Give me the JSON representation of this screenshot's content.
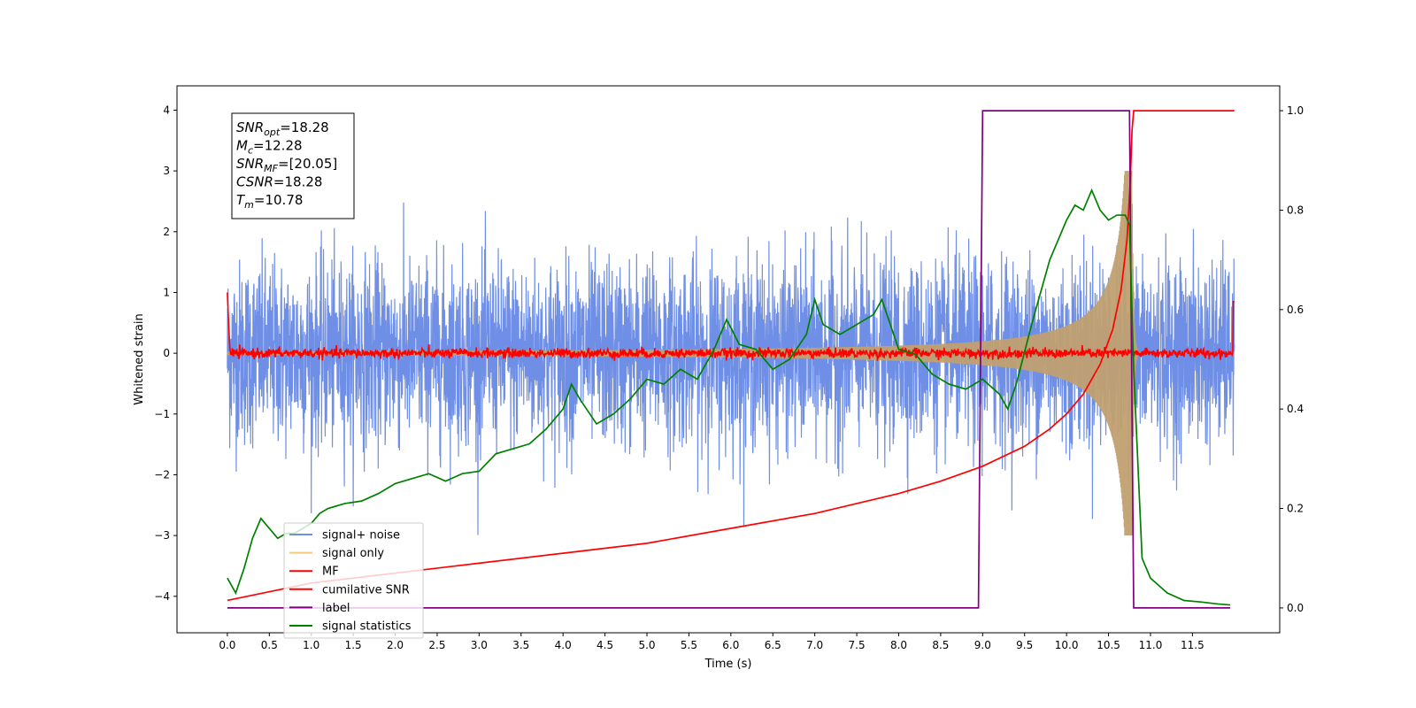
{
  "chart_data": {
    "type": "line",
    "title": "",
    "xlabel": "Time (s)",
    "ylabel": "Whitened strain",
    "xlim": [
      -0.6,
      12.54
    ],
    "ylim": [
      -4.6,
      4.4
    ],
    "y2lim": [
      -0.05,
      1.05
    ],
    "x_ticks": [
      0.0,
      0.5,
      1.0,
      1.5,
      2.0,
      2.5,
      3.0,
      3.5,
      4.0,
      4.5,
      5.0,
      5.5,
      6.0,
      6.5,
      7.0,
      7.5,
      8.0,
      8.5,
      9.0,
      9.5,
      10.0,
      10.5,
      11.0,
      11.5
    ],
    "x_tick_labels": [
      "0.0",
      "0.5",
      "1.0",
      "1.5",
      "2.0",
      "2.5",
      "3.0",
      "3.5",
      "4.0",
      "4.5",
      "5.0",
      "5.5",
      "6.0",
      "6.5",
      "7.0",
      "7.5",
      "8.0",
      "8.5",
      "9.0",
      "9.5",
      "10.0",
      "10.5",
      "11.0",
      "11.5"
    ],
    "y_ticks": [
      -4,
      -3,
      -2,
      -1,
      0,
      1,
      2,
      3,
      4
    ],
    "y_tick_labels": [
      "−4",
      "−3",
      "−2",
      "−1",
      "0",
      "1",
      "2",
      "3",
      "4"
    ],
    "y2_ticks": [
      0.0,
      0.2,
      0.4,
      0.6,
      0.8,
      1.0
    ],
    "y2_tick_labels": [
      "0.0",
      "0.2",
      "0.4",
      "0.6",
      "0.8",
      "1.0"
    ],
    "grid": false,
    "legend_placement": "lower-left",
    "annotation": [
      {
        "symbol": "SNR",
        "sub": "opt",
        "value": "=18.28"
      },
      {
        "symbol": "M",
        "sub": "c",
        "value": "=12.28"
      },
      {
        "symbol": "SNR",
        "sub": "MF",
        "value": "=[20.05]"
      },
      {
        "symbol": "CSNR",
        "sub": "",
        "value": "=18.28"
      },
      {
        "symbol": "T",
        "sub": "m",
        "value": "=10.78"
      }
    ],
    "series": [
      {
        "name": "signal+ noise",
        "color": "#6f8fe6",
        "axis": "left",
        "kind": "noise-band",
        "t_range": [
          0.0,
          12.0
        ],
        "noise_std": 0.75,
        "max_abs": 3.2,
        "envelope_peak": 2.9,
        "peak_time": 10.78
      },
      {
        "name": "signal only",
        "color": "#f5c97a",
        "axis": "left",
        "kind": "chirp",
        "t_range": [
          0.0,
          12.0
        ],
        "amplitude_start": 0.03,
        "amplitude_peak": 3.0,
        "peak_time": 10.78
      },
      {
        "name": "MF",
        "color": "#ff0000",
        "axis": "left",
        "kind": "flat-noise",
        "t_range": [
          0.0,
          12.0
        ],
        "level": 0.0,
        "noise_std": 0.04,
        "start_value": 1.0,
        "end_value": 0.85
      },
      {
        "name": "cumilative SNR",
        "color": "#ff0000",
        "axis": "right",
        "x": [
          0.0,
          1.0,
          2.0,
          3.0,
          4.0,
          5.0,
          6.0,
          7.0,
          7.5,
          8.0,
          8.5,
          9.0,
          9.5,
          9.8,
          10.0,
          10.2,
          10.4,
          10.55,
          10.65,
          10.72,
          10.76,
          10.78,
          10.8,
          12.0
        ],
        "y": [
          0.015,
          0.05,
          0.07,
          0.09,
          0.11,
          0.13,
          0.16,
          0.19,
          0.21,
          0.23,
          0.255,
          0.285,
          0.325,
          0.36,
          0.39,
          0.43,
          0.49,
          0.56,
          0.64,
          0.74,
          0.86,
          0.96,
          1.0,
          1.0
        ]
      },
      {
        "name": "label",
        "color": "#800080",
        "axis": "right",
        "x": [
          0.0,
          8.95,
          9.0,
          10.75,
          10.8,
          11.95
        ],
        "y": [
          0.0,
          0.0,
          1.0,
          1.0,
          0.0,
          0.0
        ]
      },
      {
        "name": "signal statistics",
        "color": "#008000",
        "axis": "right",
        "x": [
          0.0,
          0.1,
          0.2,
          0.3,
          0.4,
          0.5,
          0.6,
          0.7,
          0.8,
          0.9,
          1.0,
          1.1,
          1.2,
          1.4,
          1.6,
          1.8,
          2.0,
          2.2,
          2.4,
          2.6,
          2.8,
          3.0,
          3.2,
          3.4,
          3.6,
          3.8,
          4.0,
          4.1,
          4.2,
          4.4,
          4.6,
          4.8,
          5.0,
          5.2,
          5.4,
          5.6,
          5.8,
          5.95,
          6.1,
          6.3,
          6.5,
          6.7,
          6.9,
          7.0,
          7.1,
          7.3,
          7.5,
          7.6,
          7.7,
          7.8,
          8.0,
          8.2,
          8.4,
          8.6,
          8.8,
          9.0,
          9.2,
          9.3,
          9.4,
          9.6,
          9.7,
          9.8,
          9.9,
          10.0,
          10.1,
          10.2,
          10.3,
          10.4,
          10.5,
          10.6,
          10.7,
          10.75,
          10.8,
          10.9,
          11.0,
          11.2,
          11.4,
          11.6,
          11.8,
          11.95
        ],
        "y": [
          0.06,
          0.03,
          0.08,
          0.14,
          0.18,
          0.16,
          0.14,
          0.15,
          0.15,
          0.16,
          0.17,
          0.19,
          0.2,
          0.21,
          0.215,
          0.23,
          0.25,
          0.26,
          0.27,
          0.255,
          0.27,
          0.275,
          0.31,
          0.32,
          0.33,
          0.36,
          0.4,
          0.45,
          0.42,
          0.37,
          0.39,
          0.42,
          0.46,
          0.45,
          0.48,
          0.46,
          0.52,
          0.58,
          0.53,
          0.52,
          0.48,
          0.5,
          0.55,
          0.62,
          0.57,
          0.55,
          0.57,
          0.58,
          0.59,
          0.62,
          0.52,
          0.51,
          0.47,
          0.45,
          0.44,
          0.46,
          0.43,
          0.4,
          0.45,
          0.58,
          0.64,
          0.7,
          0.74,
          0.78,
          0.81,
          0.8,
          0.84,
          0.8,
          0.78,
          0.79,
          0.79,
          0.77,
          0.48,
          0.1,
          0.06,
          0.03,
          0.015,
          0.012,
          0.008,
          0.006
        ]
      }
    ]
  }
}
